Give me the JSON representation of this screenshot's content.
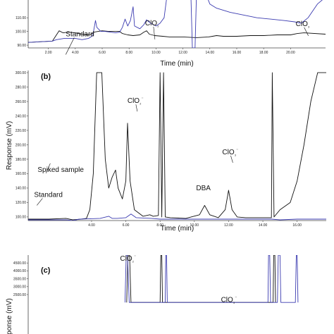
{
  "chart_data": [
    {
      "type": "line",
      "panel_label": "",
      "title": "",
      "xlabel": "Time (min)",
      "ylabel": "",
      "xlim": [
        0.5,
        22.6
      ],
      "ylim": [
        88,
        125
      ],
      "x_ticks": [
        "2.00",
        "4.00",
        "6.00",
        "8.00",
        "10.00",
        "12.00",
        "14.00",
        "16.00",
        "18.00",
        "20.00"
      ],
      "y_ticks": [
        "110.00",
        "100.00",
        "90.00"
      ],
      "grid": false,
      "annotations": [
        {
          "label": "Standard",
          "x": 4.6,
          "y": 96
        },
        {
          "label": "ClO₂",
          "x": 9.5,
          "y": 104
        },
        {
          "label": "ClO₃",
          "x": 20.8,
          "y": 103
        }
      ],
      "series": [
        {
          "name": "",
          "color": "#111111",
          "points": [
            [
              0.5,
              92
            ],
            [
              2.3,
              93
            ],
            [
              2.8,
              100.5
            ],
            [
              3.1,
              99
            ],
            [
              3.5,
              99.5
            ],
            [
              4.0,
              99
            ],
            [
              4.5,
              98
            ],
            [
              5.0,
              97.5
            ],
            [
              5.2,
              98
            ],
            [
              5.4,
              99.5
            ],
            [
              5.7,
              100
            ],
            [
              6.0,
              100.5
            ],
            [
              6.5,
              100
            ],
            [
              7.0,
              100
            ],
            [
              7.3,
              100
            ],
            [
              7.5,
              98.5
            ],
            [
              7.9,
              97.5
            ],
            [
              8.3,
              97
            ],
            [
              8.8,
              97.5
            ],
            [
              9.1,
              99.5
            ],
            [
              9.3,
              100.5
            ],
            [
              9.5,
              98
            ],
            [
              9.9,
              97
            ],
            [
              10.5,
              96.5
            ],
            [
              11,
              96
            ],
            [
              12,
              96
            ],
            [
              13,
              95.5
            ],
            [
              13.9,
              96
            ],
            [
              14.2,
              96.5
            ],
            [
              14.5,
              97
            ],
            [
              15.0,
              96.5
            ],
            [
              16,
              96.5
            ],
            [
              17,
              97
            ],
            [
              18,
              97
            ],
            [
              19,
              97.5
            ],
            [
              20,
              97.5
            ],
            [
              20.5,
              98.5
            ],
            [
              21,
              99
            ],
            [
              22.6,
              98
            ]
          ]
        },
        {
          "name": "",
          "color": "#3b3bb0",
          "points": [
            [
              0.5,
              92
            ],
            [
              2.3,
              93
            ],
            [
              2.6,
              94
            ],
            [
              3.2,
              95
            ],
            [
              4.0,
              95
            ],
            [
              4.5,
              94
            ],
            [
              5.0,
              95
            ],
            [
              5.3,
              97
            ],
            [
              5.5,
              108
            ],
            [
              5.6,
              103
            ],
            [
              5.9,
              100
            ],
            [
              6.2,
              100
            ],
            [
              6.6,
              99.5
            ],
            [
              7.0,
              99
            ],
            [
              7.3,
              99.5
            ],
            [
              7.5,
              103
            ],
            [
              7.7,
              109
            ],
            [
              7.9,
              104
            ],
            [
              8.1,
              108
            ],
            [
              8.3,
              118
            ],
            [
              8.4,
              104
            ],
            [
              8.8,
              102
            ],
            [
              9.1,
              105
            ],
            [
              9.3,
              108.5
            ],
            [
              9.6,
              106
            ],
            [
              10.0,
              104
            ],
            [
              10.3,
              106
            ],
            [
              10.6,
              110
            ],
            [
              10.8,
              125
            ],
            [
              12.6,
              125
            ],
            [
              12.7,
              88
            ],
            [
              12.9,
              88
            ],
            [
              13.0,
              125
            ],
            [
              13.8,
              125
            ],
            [
              14.0,
              120
            ],
            [
              14.5,
              117
            ],
            [
              15.5,
              114
            ],
            [
              16.5,
              112
            ],
            [
              17.5,
              110
            ],
            [
              18.5,
              109
            ],
            [
              19.5,
              108
            ],
            [
              20.3,
              107
            ],
            [
              20.8,
              106
            ],
            [
              21.3,
              110
            ],
            [
              22.0,
              120
            ],
            [
              22.6,
              125
            ]
          ]
        }
      ]
    },
    {
      "type": "line",
      "panel_label": "(b)",
      "title": "",
      "xlabel": "Time (min)",
      "ylabel": "Response (mV)",
      "xlim": [
        0.3,
        17.7
      ],
      "ylim": [
        95,
        303
      ],
      "x_ticks": [
        "4.00",
        "6.00",
        "8.00",
        "10.00",
        "12.00",
        "14.00",
        "16.00"
      ],
      "y_ticks": [
        "300.00",
        "280.00",
        "260.00",
        "240.00",
        "220.00",
        "200.00",
        "180.00",
        "160.00",
        "140.00",
        "120.00",
        "100.00"
      ],
      "grid": false,
      "annotations": [
        {
          "label": "Spiked sample",
          "x": 3.4,
          "y": 141
        },
        {
          "label": "Standard",
          "x": 2.0,
          "y": 118
        },
        {
          "label": "ClO₂⁻",
          "x": 6.3,
          "y": 255
        },
        {
          "label": "DBA",
          "x": 10.6,
          "y": 133
        },
        {
          "label": "ClO₃⁻",
          "x": 12.0,
          "y": 183
        }
      ],
      "series": [
        {
          "name": "",
          "color": "#111111",
          "points": [
            [
              0.3,
              97
            ],
            [
              1.5,
              97
            ],
            [
              2.5,
              98
            ],
            [
              2.9,
              96
            ],
            [
              3.4,
              97
            ],
            [
              3.7,
              98
            ],
            [
              3.9,
              110
            ],
            [
              4.1,
              160
            ],
            [
              4.3,
              300
            ],
            [
              4.6,
              300
            ],
            [
              4.8,
              180
            ],
            [
              5.0,
              140
            ],
            [
              5.2,
              155
            ],
            [
              5.4,
              165
            ],
            [
              5.55,
              140
            ],
            [
              5.8,
              125
            ],
            [
              6.0,
              150
            ],
            [
              6.1,
              230
            ],
            [
              6.25,
              150
            ],
            [
              6.5,
              110
            ],
            [
              7.0,
              101
            ],
            [
              7.4,
              103
            ],
            [
              7.6,
              101
            ],
            [
              7.9,
              102
            ],
            [
              8.0,
              300
            ],
            [
              8.1,
              100
            ],
            [
              8.2,
              300
            ],
            [
              8.3,
              100
            ],
            [
              8.6,
              99
            ],
            [
              9.5,
              98
            ],
            [
              10.3,
              103
            ],
            [
              10.6,
              116
            ],
            [
              10.9,
              103
            ],
            [
              11.4,
              99
            ],
            [
              11.8,
              110
            ],
            [
              12.0,
              137
            ],
            [
              12.2,
              110
            ],
            [
              12.5,
              100
            ],
            [
              13,
              99
            ],
            [
              14,
              99
            ],
            [
              14.5,
              99
            ],
            [
              14.55,
              300
            ],
            [
              14.65,
              100
            ],
            [
              15.0,
              110
            ],
            [
              15.6,
              120
            ],
            [
              16.0,
              150
            ],
            [
              16.4,
              200
            ],
            [
              16.8,
              260
            ],
            [
              17.2,
              300
            ],
            [
              17.7,
              300
            ]
          ]
        },
        {
          "name": "",
          "color": "#3b3bb0",
          "points": [
            [
              0.3,
              96
            ],
            [
              1.5,
              96
            ],
            [
              2.5,
              96
            ],
            [
              2.9,
              95
            ],
            [
              3.3,
              97
            ],
            [
              4.0,
              97.5
            ],
            [
              4.5,
              98
            ],
            [
              5.0,
              101
            ],
            [
              5.2,
              98
            ],
            [
              5.5,
              98
            ],
            [
              6.0,
              99
            ],
            [
              6.3,
              104
            ],
            [
              6.6,
              99
            ],
            [
              7.5,
              98
            ],
            [
              8.0,
              97
            ],
            [
              10,
              97
            ],
            [
              14.5,
              97
            ],
            [
              15,
              96
            ],
            [
              16,
              97
            ],
            [
              17.7,
              97
            ]
          ]
        }
      ]
    },
    {
      "type": "line",
      "panel_label": "(c)",
      "title": "",
      "xlabel": "",
      "ylabel": "Response (mV)",
      "xlim": [
        0.3,
        17.7
      ],
      "ylim": [
        0,
        5000
      ],
      "x_ticks": [],
      "y_ticks": [
        "4500.00",
        "4000.00",
        "3500.00",
        "3000.00",
        "2500.00"
      ],
      "grid": false,
      "annotations": [
        {
          "label": "ClO₂⁻",
          "x": 6.2,
          "y": 4500
        },
        {
          "label": "ClO₃⁻",
          "x": 11.8,
          "y": 1900
        }
      ],
      "series": [
        {
          "name": "",
          "color": "#111111",
          "points": [
            [
              6.05,
              2000
            ],
            [
              6.12,
              5000
            ],
            [
              6.22,
              5000
            ],
            [
              6.3,
              2000
            ],
            [
              8.0,
              2000
            ],
            [
              8.04,
              5000
            ],
            [
              8.1,
              5000
            ],
            [
              8.14,
              2000
            ],
            [
              14.6,
              2000
            ],
            [
              14.63,
              5000
            ],
            [
              14.7,
              5000
            ],
            [
              14.74,
              2000
            ]
          ]
        },
        {
          "name": "",
          "color": "#3b3bb0",
          "points": [
            [
              5.95,
              2000
            ],
            [
              6.02,
              5000
            ],
            [
              6.1,
              5000
            ],
            [
              6.2,
              2000
            ],
            [
              8.3,
              2000
            ],
            [
              8.33,
              5000
            ],
            [
              8.38,
              5000
            ],
            [
              8.42,
              2000
            ],
            [
              14.3,
              2000
            ],
            [
              14.33,
              5000
            ],
            [
              14.4,
              5000
            ],
            [
              14.45,
              2000
            ],
            [
              14.85,
              2000
            ],
            [
              14.9,
              5000
            ],
            [
              15.0,
              5000
            ],
            [
              15.05,
              2000
            ],
            [
              15.9,
              2000
            ],
            [
              15.95,
              5000
            ],
            [
              16.0,
              5000
            ],
            [
              16.05,
              2000
            ]
          ]
        }
      ]
    }
  ]
}
